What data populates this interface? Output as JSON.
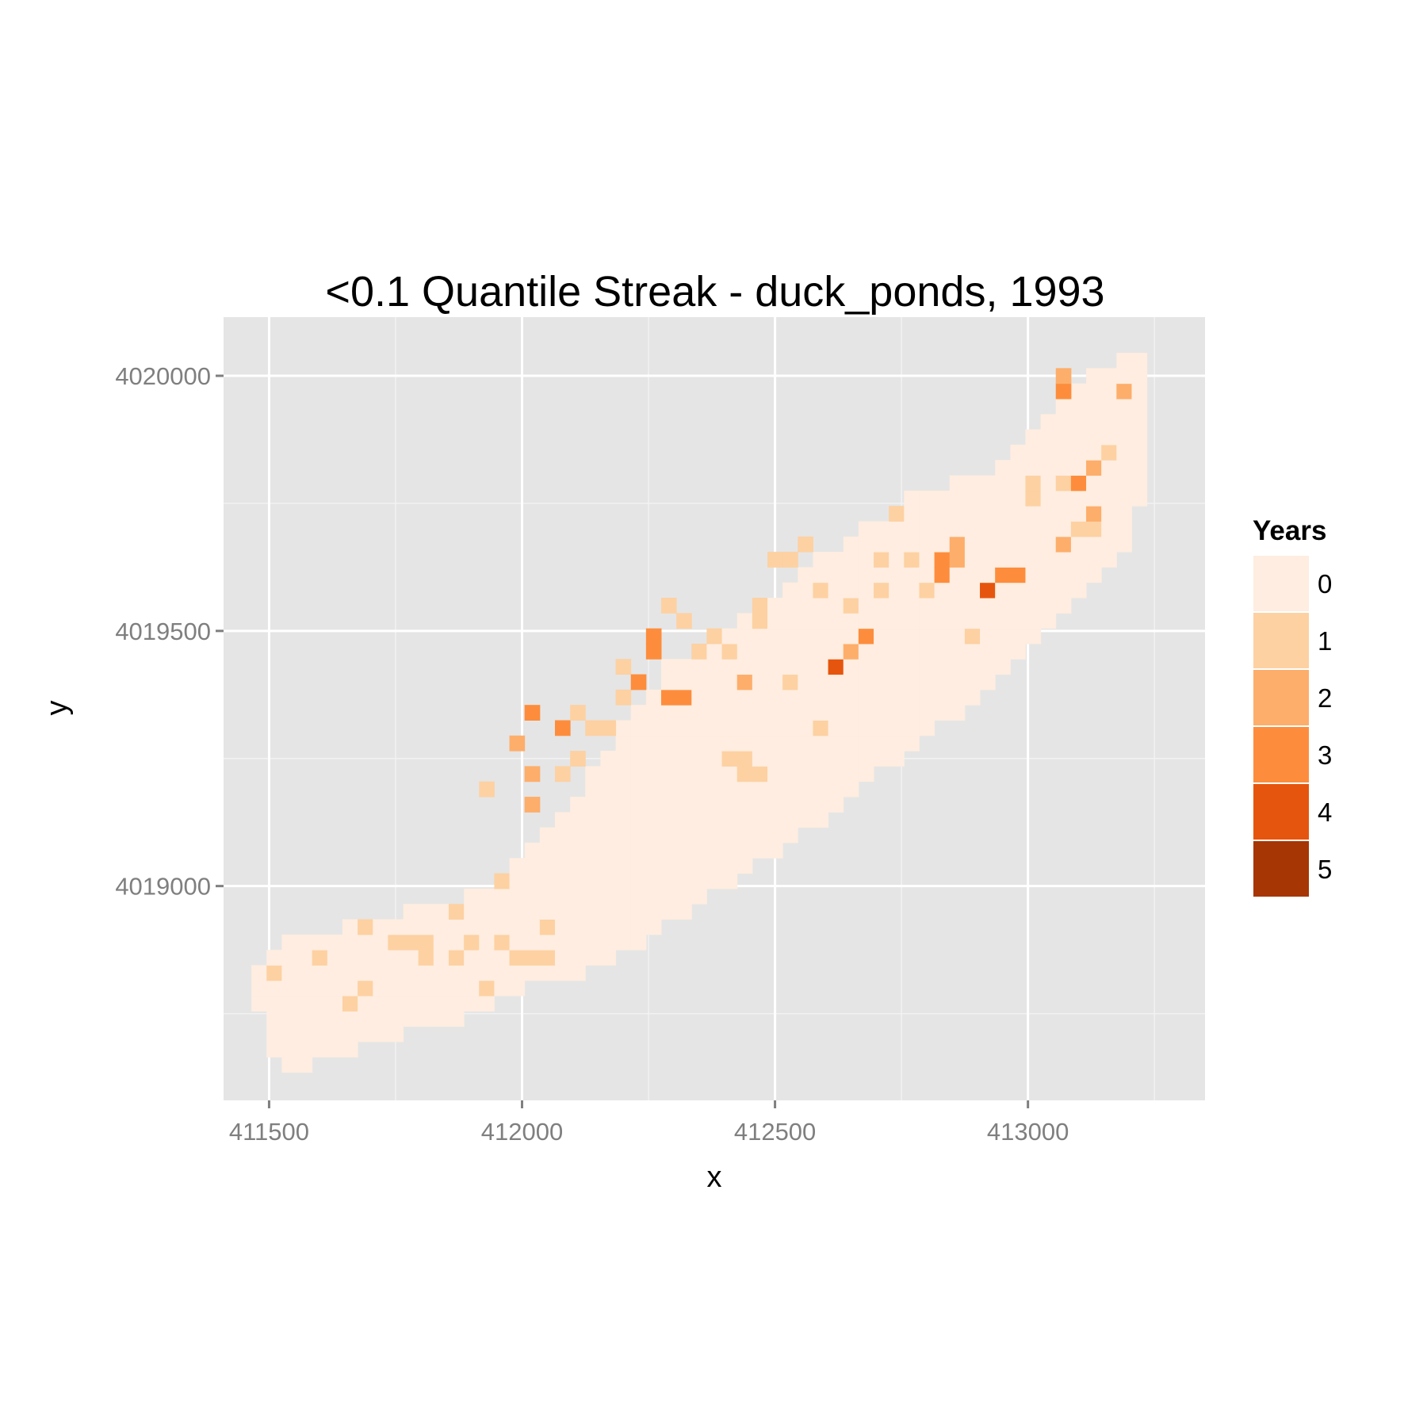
{
  "chart_data": {
    "type": "heatmap",
    "title": "<0.1 Quantile Streak - duck_ponds, 1993",
    "xlabel": "x",
    "ylabel": "y",
    "xlim": [
      411410,
      413350
    ],
    "ylim": [
      4018580,
      4020115
    ],
    "x_ticks": [
      411500,
      412000,
      412500,
      413000
    ],
    "x_tick_labels": [
      "411500",
      "412000",
      "412500",
      "413000"
    ],
    "x_minor": [
      411750,
      412250,
      412750,
      413250
    ],
    "y_ticks": [
      4019000,
      4019500,
      4020000
    ],
    "y_tick_labels": [
      "4019000",
      "4019500",
      "4020000"
    ],
    "y_minor": [
      4018750,
      4019250,
      4019750
    ],
    "panel_background": "#e5e5e5",
    "grid": true,
    "cell_size": 30,
    "legend": {
      "title": "Years",
      "position": "right",
      "levels": [
        "0",
        "1",
        "2",
        "3",
        "4",
        "5"
      ],
      "colors": [
        "#feede0",
        "#fdd1a2",
        "#fdae6b",
        "#fd8d3c",
        "#e6550d",
        "#a63603"
      ]
    },
    "column_ranges": [
      [
        411490,
        4018780,
        4018840
      ],
      [
        411520,
        4018680,
        4018870
      ],
      [
        411550,
        4018640,
        4018890
      ],
      [
        411580,
        4018640,
        4018890
      ],
      [
        411610,
        4018680,
        4018890
      ],
      [
        411640,
        4018680,
        4018890
      ],
      [
        411670,
        4018680,
        4018920
      ],
      [
        411700,
        4018710,
        4018920
      ],
      [
        411730,
        4018710,
        4018920
      ],
      [
        411760,
        4018710,
        4018920
      ],
      [
        411790,
        4018740,
        4018950
      ],
      [
        411820,
        4018740,
        4018950
      ],
      [
        411850,
        4018740,
        4018950
      ],
      [
        411880,
        4018740,
        4018950
      ],
      [
        411910,
        4018770,
        4018980
      ],
      [
        411940,
        4018770,
        4018980
      ],
      [
        411970,
        4018800,
        4019010
      ],
      [
        412000,
        4018800,
        4019040
      ],
      [
        412030,
        4018820,
        4019080
      ],
      [
        412060,
        4018820,
        4019090
      ],
      [
        412090,
        4018830,
        4019130
      ],
      [
        412120,
        4018840,
        4019170
      ],
      [
        412150,
        4018850,
        4019210
      ],
      [
        412180,
        4018860,
        4019240
      ],
      [
        412210,
        4018880,
        4019300
      ],
      [
        412240,
        4018900,
        4019340
      ],
      [
        412270,
        4018920,
        4019380
      ],
      [
        412300,
        4018940,
        4019420
      ],
      [
        412330,
        4018960,
        4019440
      ],
      [
        412360,
        4018980,
        4019460
      ],
      [
        412390,
        4019000,
        4019480
      ],
      [
        412420,
        4019020,
        4019500
      ],
      [
        412450,
        4019040,
        4019520
      ],
      [
        412480,
        4019060,
        4019540
      ],
      [
        412510,
        4019080,
        4019560
      ],
      [
        412540,
        4019100,
        4019590
      ],
      [
        412570,
        4019120,
        4019610
      ],
      [
        412600,
        4019140,
        4019630
      ],
      [
        412630,
        4019160,
        4019650
      ],
      [
        412660,
        4019190,
        4019670
      ],
      [
        412690,
        4019220,
        4019690
      ],
      [
        412720,
        4019240,
        4019710
      ],
      [
        412750,
        4019260,
        4019730
      ],
      [
        412780,
        4019290,
        4019750
      ],
      [
        412810,
        4019310,
        4019760
      ],
      [
        412840,
        4019330,
        4019770
      ],
      [
        412870,
        4019350,
        4019780
      ],
      [
        412900,
        4019370,
        4019790
      ],
      [
        412930,
        4019400,
        4019800
      ],
      [
        412960,
        4019420,
        4019820
      ],
      [
        412990,
        4019450,
        4019840
      ],
      [
        413020,
        4019480,
        4019870
      ],
      [
        413050,
        4019510,
        4019900
      ],
      [
        413080,
        4019540,
        4019930
      ],
      [
        413110,
        4019570,
        4019960
      ],
      [
        413140,
        4019600,
        4019990
      ],
      [
        413170,
        4019630,
        4020010
      ],
      [
        413200,
        4019660,
        4020020
      ],
      [
        413230,
        4019760,
        4020020
      ]
    ],
    "highlights": [
      [
        411500,
        4018830,
        1
      ],
      [
        411590,
        4018860,
        1
      ],
      [
        411650,
        4018770,
        1
      ],
      [
        411680,
        4018800,
        1
      ],
      [
        411690,
        4018920,
        1
      ],
      [
        411740,
        4018880,
        1
      ],
      [
        411770,
        4018880,
        1
      ],
      [
        411800,
        4018860,
        1
      ],
      [
        411820,
        4018880,
        1
      ],
      [
        411860,
        4018860,
        1
      ],
      [
        411880,
        4018950,
        1
      ],
      [
        411900,
        4018880,
        1
      ],
      [
        411940,
        4018800,
        1
      ],
      [
        411950,
        4018880,
        1
      ],
      [
        411980,
        4018850,
        1
      ],
      [
        412010,
        4018850,
        1
      ],
      [
        412040,
        4018870,
        1
      ],
      [
        412040,
        4018920,
        1
      ],
      [
        411920,
        4019190,
        1
      ],
      [
        411960,
        4019010,
        1
      ],
      [
        411990,
        4019290,
        2
      ],
      [
        412010,
        4019160,
        2
      ],
      [
        412020,
        4019230,
        2
      ],
      [
        412030,
        4019340,
        3
      ],
      [
        412090,
        4019320,
        3
      ],
      [
        412080,
        4019210,
        1
      ],
      [
        412110,
        4019250,
        1
      ],
      [
        412120,
        4019340,
        1
      ],
      [
        412150,
        4019320,
        1
      ],
      [
        412180,
        4019300,
        1
      ],
      [
        412210,
        4019360,
        1
      ],
      [
        412210,
        4019440,
        1
      ],
      [
        412230,
        4019410,
        1
      ],
      [
        412240,
        4019400,
        3
      ],
      [
        412250,
        4019490,
        3
      ],
      [
        412270,
        4019450,
        3
      ],
      [
        412290,
        4019380,
        3
      ],
      [
        412320,
        4019370,
        3
      ],
      [
        412300,
        4019540,
        1
      ],
      [
        412330,
        4019510,
        1
      ],
      [
        412350,
        4019450,
        1
      ],
      [
        412370,
        4019500,
        1
      ],
      [
        412400,
        4019250,
        1
      ],
      [
        412430,
        4019260,
        1
      ],
      [
        412450,
        4019210,
        1
      ],
      [
        412480,
        4019220,
        1
      ],
      [
        412400,
        4019460,
        1
      ],
      [
        412440,
        4019400,
        2
      ],
      [
        412460,
        4019560,
        1
      ],
      [
        412480,
        4019510,
        1
      ],
      [
        412500,
        4019630,
        1
      ],
      [
        412520,
        4019650,
        1
      ],
      [
        412540,
        4019400,
        1
      ],
      [
        412560,
        4019680,
        1
      ],
      [
        412580,
        4019320,
        1
      ],
      [
        412600,
        4019570,
        1
      ],
      [
        412610,
        4019420,
        2
      ],
      [
        412630,
        4019420,
        4
      ],
      [
        412650,
        4019460,
        2
      ],
      [
        412660,
        4019540,
        1
      ],
      [
        412680,
        4019490,
        3
      ],
      [
        412700,
        4019590,
        1
      ],
      [
        412720,
        4019650,
        1
      ],
      [
        412740,
        4019730,
        1
      ],
      [
        412760,
        4019630,
        1
      ],
      [
        412800,
        4019590,
        1
      ],
      [
        412820,
        4019640,
        3
      ],
      [
        412840,
        4019610,
        3
      ],
      [
        412850,
        4019660,
        2
      ],
      [
        412870,
        4019650,
        2
      ],
      [
        412880,
        4019500,
        1
      ],
      [
        412920,
        4019580,
        4
      ],
      [
        412950,
        4019620,
        3
      ],
      [
        412970,
        4019610,
        3
      ],
      [
        413000,
        4019750,
        1
      ],
      [
        413020,
        4019790,
        1
      ],
      [
        413060,
        4019790,
        1
      ],
      [
        413080,
        4019670,
        2
      ],
      [
        413100,
        4019690,
        1
      ],
      [
        413110,
        4019800,
        3
      ],
      [
        413130,
        4019700,
        1
      ],
      [
        413140,
        4019740,
        2
      ],
      [
        413150,
        4019850,
        1
      ],
      [
        413060,
        4019960,
        3
      ],
      [
        413060,
        4019990,
        2
      ],
      [
        413180,
        4019970,
        2
      ],
      [
        413130,
        4019830,
        2
      ]
    ]
  }
}
